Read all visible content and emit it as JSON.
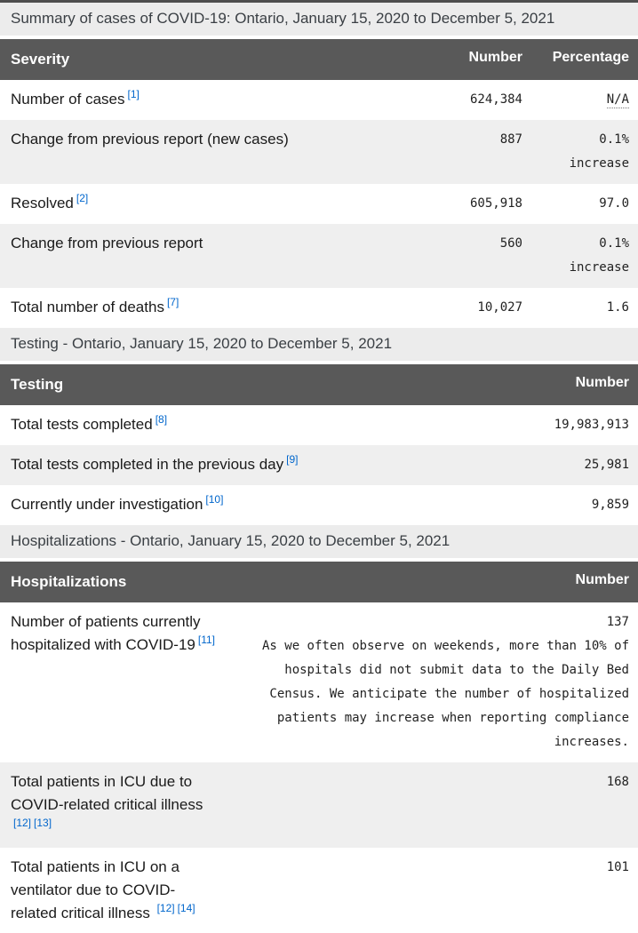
{
  "colors": {
    "header_bg": "#595959",
    "header_text": "#ffffff",
    "caption_bg": "#ececec",
    "row_alt_bg": "#efefef",
    "link_blue": "#0066cc",
    "top_border": "#4e4e4e"
  },
  "tables": [
    {
      "caption": "Summary of cases of COVID-19: Ontario, January 15, 2020 to December 5, 2021",
      "columns": [
        "Severity",
        "Number",
        "Percentage"
      ],
      "rows": [
        {
          "label": "Number of cases",
          "refs": [
            "[1]"
          ],
          "number": "624,384",
          "percentage": "N/A"
        },
        {
          "label": "Change from previous report (new cases)",
          "refs": [],
          "number": "887",
          "percentage": "0.1%",
          "percentage_note": "increase"
        },
        {
          "label": "Resolved",
          "refs": [
            "[2]"
          ],
          "number": "605,918",
          "percentage": "97.0"
        },
        {
          "label": "Change from previous report",
          "refs": [],
          "number": "560",
          "percentage": "0.1%",
          "percentage_note": "increase"
        },
        {
          "label": "Total number of deaths",
          "refs": [
            "[7]"
          ],
          "number": "10,027",
          "percentage": "1.6"
        }
      ]
    },
    {
      "caption": "Testing - Ontario, January 15, 2020 to December 5, 2021",
      "columns": [
        "Testing",
        "Number"
      ],
      "rows": [
        {
          "label": "Total tests completed",
          "refs": [
            "[8]"
          ],
          "number": "19,983,913"
        },
        {
          "label": "Total tests completed in the previous day",
          "refs": [
            "[9]"
          ],
          "number": "25,981"
        },
        {
          "label": "Currently under investigation",
          "refs": [
            "[10]"
          ],
          "number": "9,859"
        }
      ]
    },
    {
      "caption": "Hospitalizations - Ontario, January 15, 2020 to December 5, 2021",
      "columns": [
        "Hospitalizations",
        "Number"
      ],
      "rows": [
        {
          "label": "Number of patients currently hospitalized with COVID-19",
          "refs": [
            "[11]"
          ],
          "number": "137",
          "note": "As we often observe on weekends, more than 10% of hospitals did not submit data to the Daily Bed Census. We anticipate the number of hospitalized patients may increase when reporting compliance increases."
        },
        {
          "label": "Total patients in ICU due to COVID-related critical illness",
          "refs": [
            "[12]",
            "[13]"
          ],
          "number": "168"
        },
        {
          "label": "Total patients in ICU on a ventilator due to COVID-related critical illness",
          "refs": [
            "[12]",
            "[14]"
          ],
          "number": "101"
        }
      ]
    }
  ]
}
